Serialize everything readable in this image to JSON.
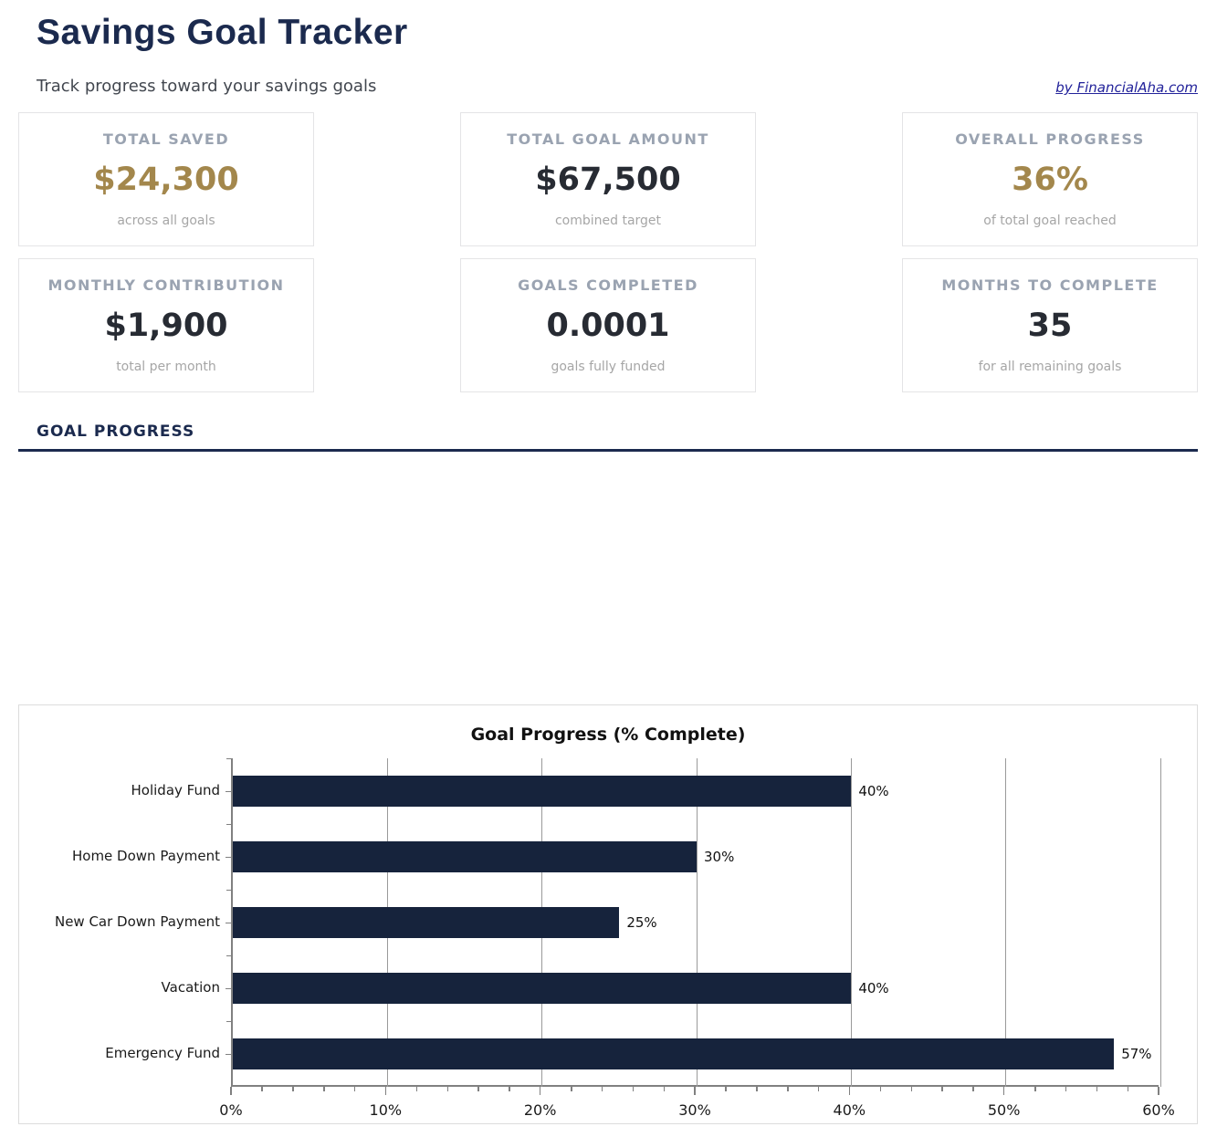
{
  "header": {
    "title": "Savings Goal Tracker",
    "subtitle": "Track progress toward your savings goals",
    "credit_link": "by FinancialAha.com"
  },
  "stats": [
    {
      "label": "TOTAL SAVED",
      "value": "$24,300",
      "caption": "across all goals",
      "accent": true
    },
    {
      "label": "TOTAL GOAL AMOUNT",
      "value": "$67,500",
      "caption": "combined target",
      "accent": false
    },
    {
      "label": "OVERALL PROGRESS",
      "value": "36%",
      "caption": "of total goal reached",
      "accent": true
    },
    {
      "label": "MONTHLY CONTRIBUTION",
      "value": "$1,900",
      "caption": "total per month",
      "accent": false
    },
    {
      "label": "GOALS COMPLETED",
      "value": "0.0001",
      "caption": "goals fully funded",
      "accent": false
    },
    {
      "label": "MONTHS TO COMPLETE",
      "value": "35",
      "caption": "for all remaining goals",
      "accent": false
    }
  ],
  "section": {
    "heading": "GOAL PROGRESS"
  },
  "colors": {
    "navy": "#1b2a4e",
    "gold": "#a3874c",
    "bar": "#16233c",
    "grid": "#9a9a9a",
    "spine": "#808080",
    "link_blue": "#22229a"
  },
  "chart_data": {
    "type": "bar",
    "orientation": "horizontal",
    "title": "Goal Progress (% Complete)",
    "categories": [
      "Holiday Fund",
      "Home Down Payment",
      "New Car Down Payment",
      "Vacation",
      "Emergency Fund"
    ],
    "values": [
      40,
      30,
      25,
      40,
      57
    ],
    "value_labels": [
      "40%",
      "30%",
      "25%",
      "40%",
      "57%"
    ],
    "xlim": [
      0,
      60
    ],
    "x_major_ticks": [
      0,
      10,
      20,
      30,
      40,
      50,
      60
    ],
    "x_tick_labels": [
      "0%",
      "10%",
      "20%",
      "30%",
      "40%",
      "50%",
      "60%"
    ],
    "x_minor_tick_step": 2,
    "grid": "vertical",
    "legend": "none",
    "bar_color": "#16233c"
  }
}
